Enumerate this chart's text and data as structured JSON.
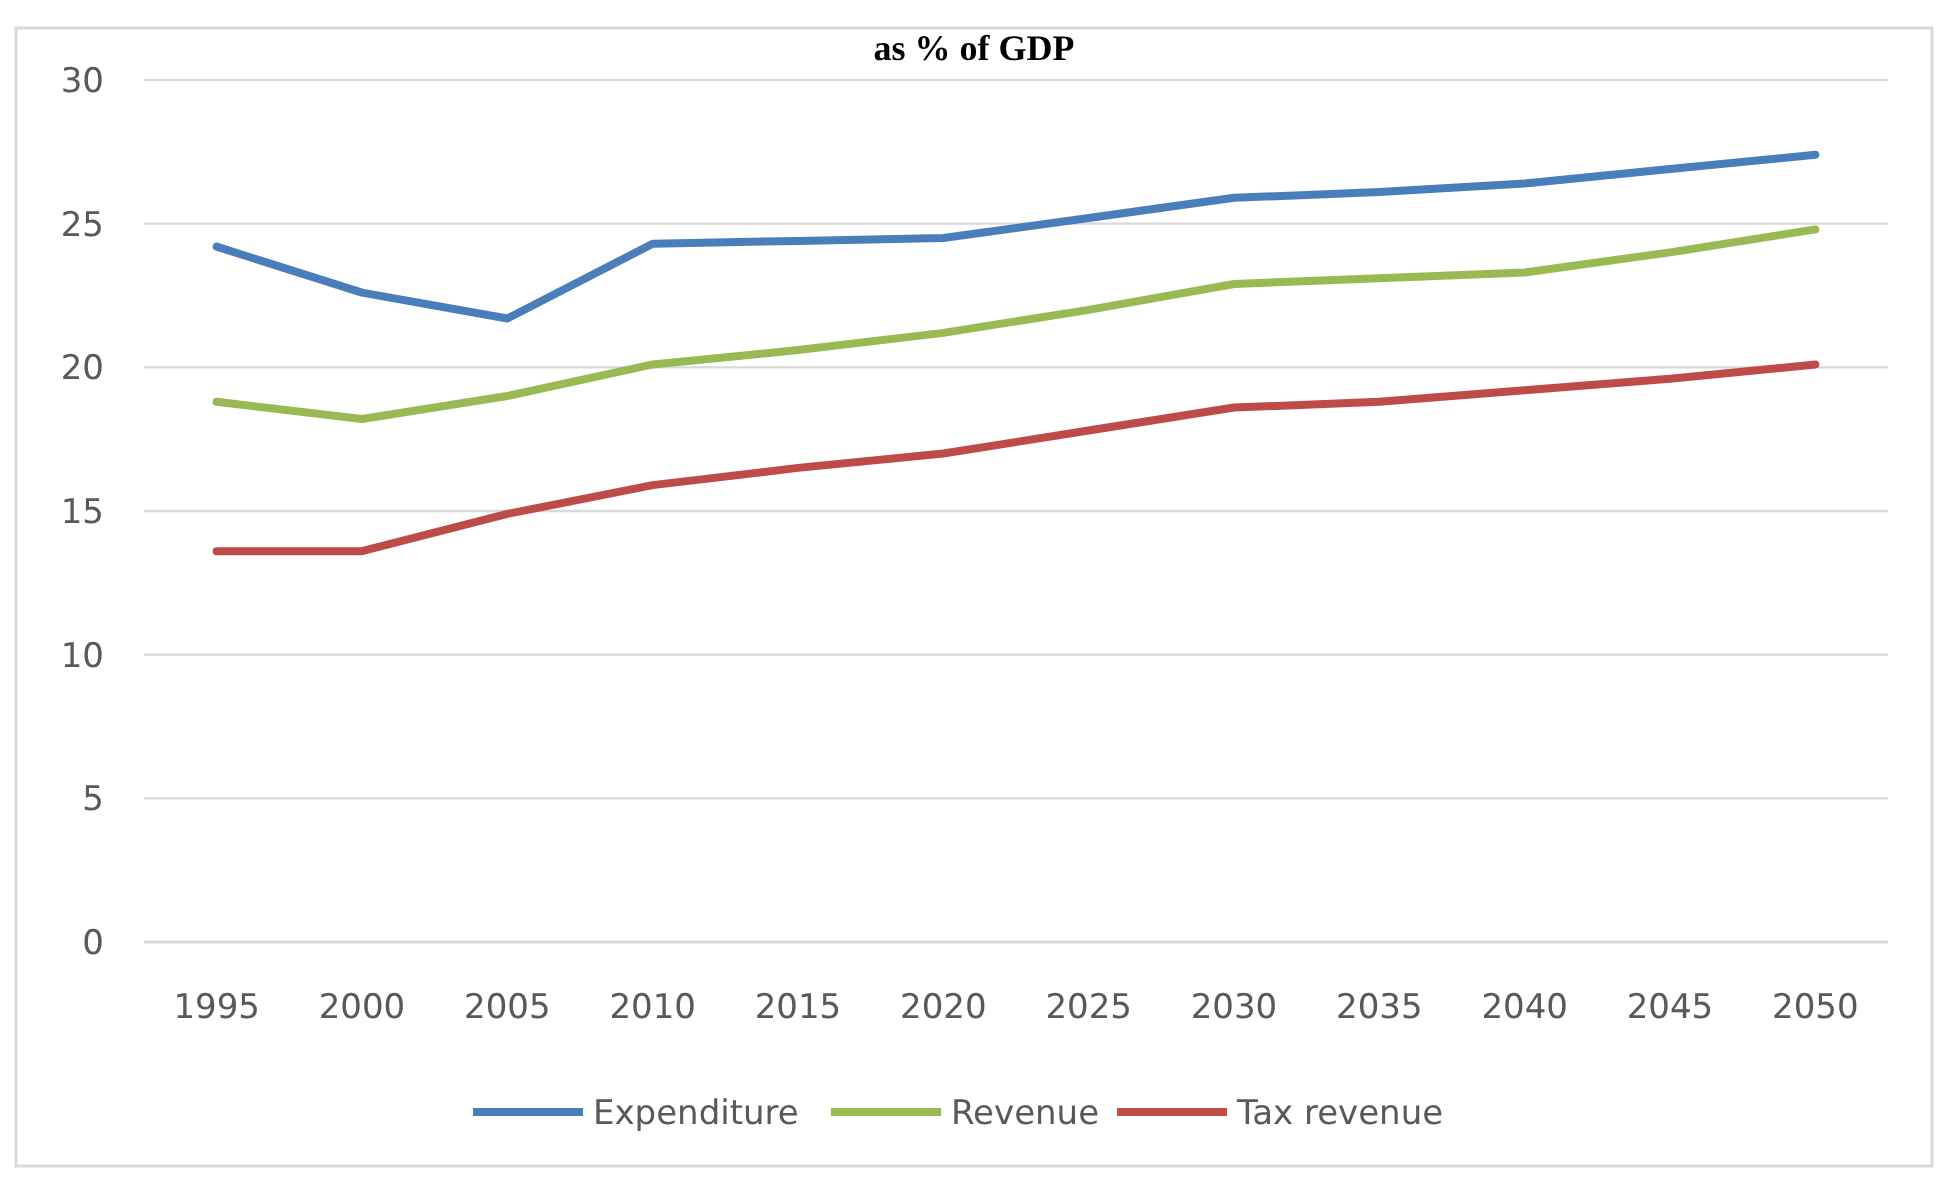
{
  "chart_data": {
    "type": "line",
    "title": "as % of GDP",
    "categories": [
      "1995",
      "2000",
      "2005",
      "2010",
      "2015",
      "2020",
      "2025",
      "2030",
      "2035",
      "2040",
      "2045",
      "2050"
    ],
    "series": [
      {
        "name": "Expenditure",
        "color": "#4a7ebb",
        "values": [
          24.2,
          22.6,
          21.7,
          24.3,
          24.4,
          24.5,
          25.2,
          25.9,
          26.1,
          26.4,
          26.9,
          27.4
        ]
      },
      {
        "name": "Revenue",
        "color": "#98b954",
        "values": [
          18.8,
          18.2,
          19.0,
          20.1,
          20.6,
          21.2,
          22.0,
          22.9,
          23.1,
          23.3,
          24.0,
          24.8
        ]
      },
      {
        "name": "Tax revenue",
        "color": "#be4b48",
        "values": [
          13.6,
          13.6,
          14.9,
          15.9,
          16.5,
          17.0,
          17.8,
          18.6,
          18.8,
          19.2,
          19.6,
          20.1
        ]
      }
    ],
    "ylim": [
      0,
      30
    ],
    "yticks": [
      0,
      5,
      10,
      15,
      20,
      25,
      30
    ],
    "grid": "y",
    "legend": "bottom",
    "marker": "none",
    "line_style": "solid"
  }
}
